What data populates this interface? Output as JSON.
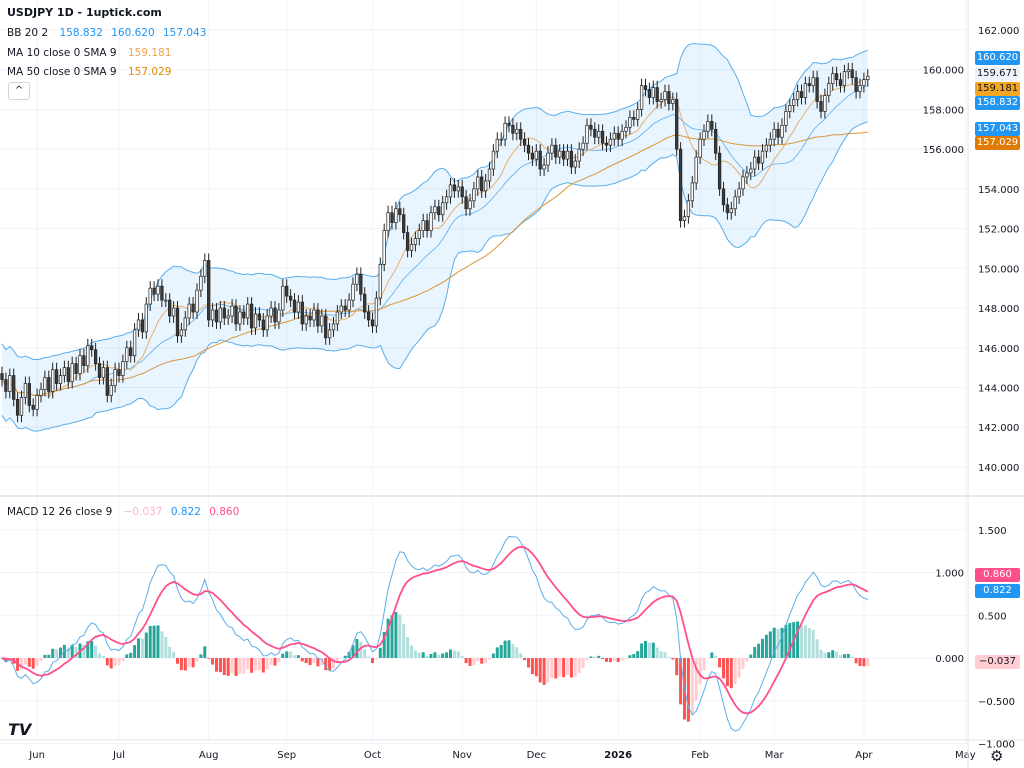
{
  "header": {
    "title": "USDJPY 1D - 1uptick.com"
  },
  "legend": {
    "bb": {
      "label": "BB 20 2",
      "basis": "158.832",
      "upper": "160.620",
      "lower": "157.043"
    },
    "ma10": {
      "label": "MA 10 close 0 SMA 9",
      "value": "159.181"
    },
    "ma50": {
      "label": "MA 50 close 0 SMA 9",
      "value": "157.029"
    },
    "macd": {
      "label": "MACD 12 26 close 9",
      "hist": "−0.037",
      "macd": "0.822",
      "signal": "0.860"
    },
    "collapse_icon": "chevron-up-icon"
  },
  "price_tags": [
    {
      "text": "160.620",
      "bg": "#2196f3",
      "fg": "#ffffff",
      "value": 160.62
    },
    {
      "text": "159.671",
      "bg": "#f0f3fa",
      "fg": "#131722",
      "value": 159.671
    },
    {
      "text": "159.181",
      "bg": "#f5a623",
      "fg": "#131722",
      "value": 159.181
    },
    {
      "text": "158.832",
      "bg": "#2196f3",
      "fg": "#ffffff",
      "value": 158.832
    },
    {
      "text": "157.043",
      "bg": "#2196f3",
      "fg": "#ffffff",
      "value": 157.043
    },
    {
      "text": "157.029",
      "bg": "#e07a00",
      "fg": "#ffffff",
      "value": 157.029
    }
  ],
  "macd_tags": [
    {
      "text": "0.860",
      "bg": "#ff4f8b",
      "fg": "#ffffff",
      "value": 0.86
    },
    {
      "text": "0.822",
      "bg": "#2196f3",
      "fg": "#ffffff",
      "value": 0.822
    },
    {
      "text": "−0.037",
      "bg": "#ffcdd2",
      "fg": "#131722",
      "value": -0.037
    }
  ],
  "colors": {
    "bb_line": "#5aaeea",
    "bb_fill": "rgba(33,150,243,0.10)",
    "ma10": "#e8b070",
    "ma50": "#d9963a",
    "macd_line": "#5aaeea",
    "signal_line": "#ff4f8b",
    "hist_up_strong": "#26a69a",
    "hist_up_weak": "#b2dfdb",
    "hist_down_strong": "#ff5252",
    "hist_down_weak": "#ffcdd2",
    "candle_down": "#3a3a3a",
    "candle_up": "#ffffff",
    "grid": "#f0f3fa"
  },
  "chart_data": [
    {
      "type": "candlestick",
      "symbol": "USDJPY",
      "interval": "1D",
      "ylim": [
        139,
        162.5
      ],
      "yticks": [
        140,
        142,
        144,
        146,
        148,
        150,
        152,
        154,
        156,
        158,
        160,
        162
      ],
      "ytick_labels": [
        "140.000",
        "142.000",
        "144.000",
        "146.000",
        "148.000",
        "150.000",
        "152.000",
        "154.000",
        "156.000",
        "158.000",
        "160.000",
        "162.000"
      ],
      "xticks": [
        {
          "label": "Jun",
          "bar": 9
        },
        {
          "label": "Jul",
          "bar": 30
        },
        {
          "label": "Aug",
          "bar": 53
        },
        {
          "label": "Sep",
          "bar": 73
        },
        {
          "label": "Oct",
          "bar": 95
        },
        {
          "label": "Nov",
          "bar": 118
        },
        {
          "label": "Dec",
          "bar": 137
        },
        {
          "label": "2026",
          "bar": 158
        },
        {
          "label": "Feb",
          "bar": 179
        },
        {
          "label": "Mar",
          "bar": 198
        },
        {
          "label": "Apr",
          "bar": 221
        },
        {
          "label": "May",
          "bar": 247
        }
      ],
      "indicators": [
        "BB 20 2",
        "MA 10",
        "MA 50"
      ],
      "close": [
        144.4,
        143.8,
        144.6,
        143.4,
        142.6,
        143.5,
        144.2,
        143.1,
        142.9,
        143.6,
        143.9,
        144.5,
        143.8,
        144.9,
        144.2,
        144.6,
        145.0,
        144.3,
        145.2,
        144.7,
        145.6,
        145.1,
        146.1,
        145.9,
        145.2,
        144.5,
        145.0,
        143.6,
        144.1,
        144.9,
        144.6,
        145.3,
        146.0,
        145.6,
        146.9,
        147.4,
        146.8,
        148.2,
        149.0,
        148.7,
        149.1,
        148.4,
        148.4,
        147.6,
        148.0,
        146.6,
        146.9,
        147.5,
        148.2,
        147.8,
        148.9,
        149.6,
        150.4,
        147.4,
        147.9,
        147.3,
        148.0,
        147.5,
        147.6,
        148.1,
        147.2,
        147.8,
        147.5,
        148.2,
        147.0,
        147.7,
        147.4,
        146.9,
        147.6,
        148.0,
        147.3,
        147.9,
        149.1,
        148.6,
        148.4,
        147.8,
        148.3,
        147.2,
        147.6,
        147.4,
        147.9,
        147.1,
        147.6,
        146.5,
        146.9,
        147.2,
        147.8,
        148.1,
        147.9,
        148.4,
        149.2,
        149.7,
        148.7,
        147.8,
        147.4,
        147.1,
        148.5,
        150.2,
        151.9,
        152.8,
        152.3,
        153.0,
        152.7,
        151.8,
        150.9,
        151.2,
        151.5,
        151.9,
        152.4,
        151.9,
        152.8,
        153.1,
        152.7,
        153.3,
        153.6,
        154.2,
        153.9,
        154.1,
        153.6,
        153.0,
        153.4,
        154.0,
        154.6,
        153.9,
        154.4,
        155.0,
        155.9,
        156.5,
        156.5,
        157.3,
        157.2,
        156.8,
        157.0,
        156.5,
        156.2,
        155.8,
        155.5,
        155.9,
        155.0,
        155.2,
        155.8,
        156.2,
        155.6,
        155.9,
        155.5,
        155.9,
        155.1,
        155.4,
        156.0,
        156.3,
        157.2,
        157.0,
        156.6,
        156.9,
        156.3,
        156.2,
        156.5,
        156.8,
        156.5,
        156.9,
        157.1,
        157.6,
        157.5,
        158.0,
        159.2,
        159.0,
        158.6,
        159.1,
        158.4,
        158.5,
        158.9,
        158.3,
        158.5,
        156.0,
        152.4,
        152.6,
        153.4,
        154.3,
        155.6,
        156.5,
        156.9,
        157.4,
        157.0,
        155.8,
        154.0,
        153.2,
        152.8,
        153.0,
        153.6,
        154.0,
        154.6,
        154.8,
        155.0,
        155.6,
        155.3,
        155.9,
        156.2,
        156.5,
        157.0,
        156.6,
        157.2,
        157.9,
        158.2,
        158.5,
        158.9,
        158.6,
        159.3,
        159.2,
        159.6,
        158.4,
        157.9,
        158.7,
        159.3,
        159.8,
        159.5,
        159.2,
        159.9,
        160.0,
        159.6,
        158.9,
        159.2,
        159.5,
        159.671
      ]
    },
    {
      "type": "macd",
      "params": "12 26 close 9",
      "ylim": [
        -1.0,
        1.65
      ],
      "yticks": [
        -1.0,
        -0.5,
        0,
        0.5,
        1.0,
        1.5
      ],
      "ytick_labels": [
        "−1.000",
        "−0.500",
        "0.000",
        "0.500",
        "1.000",
        "1.500"
      ],
      "series": [
        "macd",
        "signal",
        "histogram"
      ],
      "last": {
        "histogram": -0.037,
        "macd": 0.822,
        "signal": 0.86
      }
    }
  ],
  "branding": {
    "logo": "TV"
  },
  "settings_icon": "gear-icon"
}
